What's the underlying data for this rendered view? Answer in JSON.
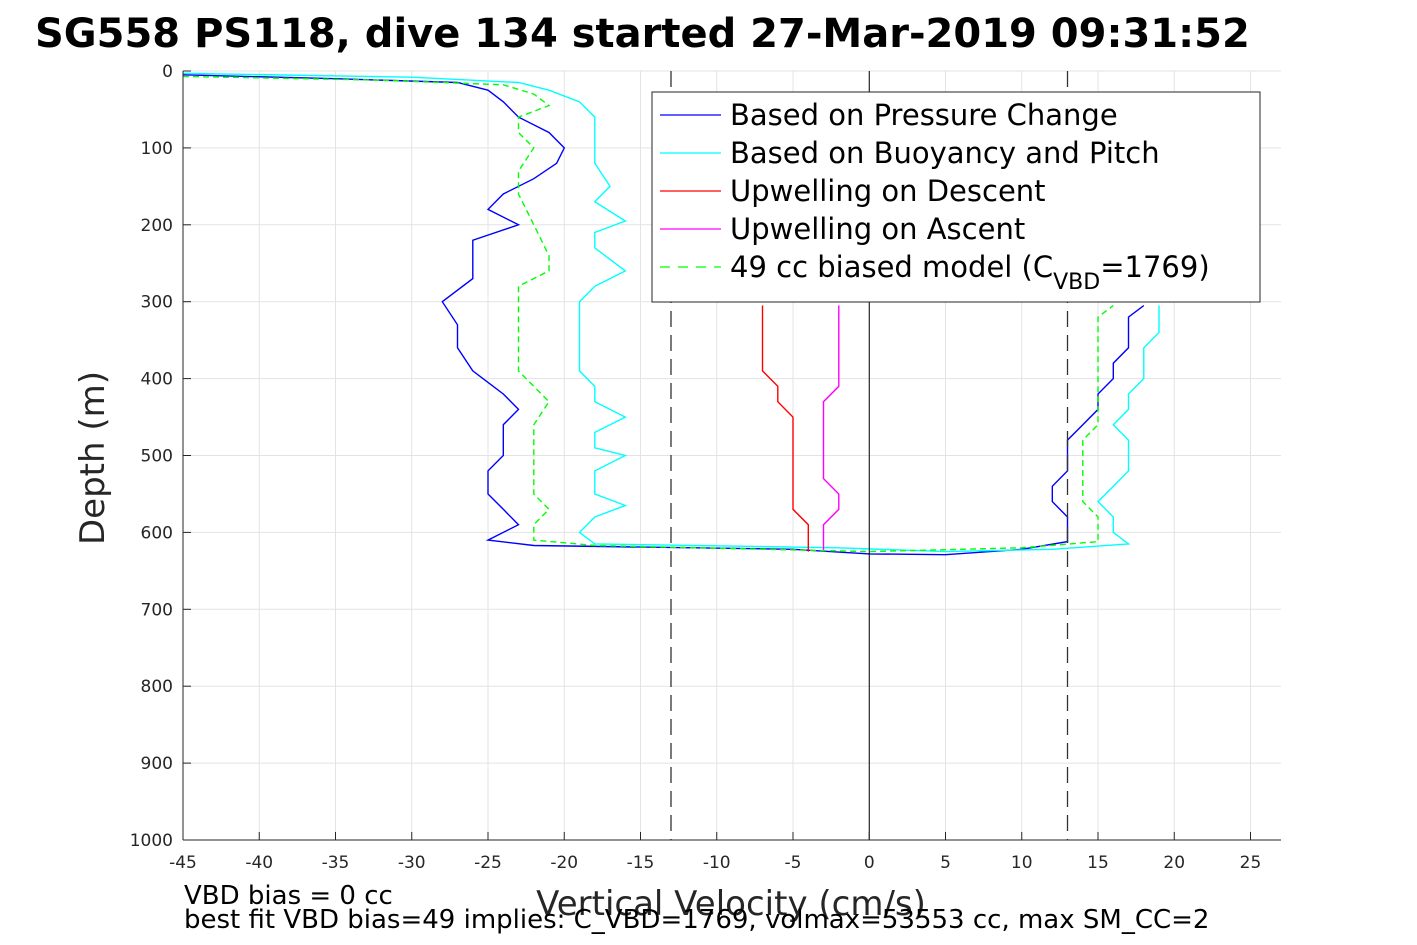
{
  "chart_data": {
    "type": "line",
    "title": "SG558 PS118, dive 134 started 27-Mar-2019 09:31:52",
    "xlabel": "Vertical Velocity (cm/s)",
    "ylabel": "Depth (m)",
    "xlim": [
      -45,
      27
    ],
    "ylim": [
      0,
      1000
    ],
    "y_reversed": true,
    "grid": true,
    "x_ticks": [
      -45,
      -40,
      -35,
      -30,
      -25,
      -20,
      -15,
      -10,
      -5,
      0,
      5,
      10,
      15,
      20,
      25
    ],
    "y_ticks": [
      0,
      100,
      200,
      300,
      400,
      500,
      600,
      700,
      800,
      900,
      1000
    ],
    "legend_position": "top-right",
    "reference_lines": {
      "zero_line_x": 0,
      "dashed_lines_x": [
        -13,
        13
      ]
    },
    "series": [
      {
        "name": "Based on Pressure Change",
        "color": "#0000ff",
        "style": "solid",
        "points": [
          [
            -45,
            5
          ],
          [
            -35,
            10
          ],
          [
            -27,
            15
          ],
          [
            -25,
            25
          ],
          [
            -24,
            40
          ],
          [
            -23,
            60
          ],
          [
            -21,
            80
          ],
          [
            -20,
            100
          ],
          [
            -20.5,
            120
          ],
          [
            -22,
            140
          ],
          [
            -24,
            160
          ],
          [
            -25,
            180
          ],
          [
            -23,
            200
          ],
          [
            -26,
            220
          ],
          [
            -26,
            250
          ],
          [
            -26,
            270
          ],
          [
            -28,
            300
          ],
          [
            -27,
            330
          ],
          [
            -27,
            360
          ],
          [
            -26,
            390
          ],
          [
            -24,
            420
          ],
          [
            -23,
            440
          ],
          [
            -24,
            460
          ],
          [
            -24,
            480
          ],
          [
            -24,
            500
          ],
          [
            -25,
            520
          ],
          [
            -25,
            550
          ],
          [
            -24,
            570
          ],
          [
            -23,
            590
          ],
          [
            -25,
            610
          ],
          [
            -22,
            617
          ],
          [
            -5,
            622
          ],
          [
            0,
            628
          ],
          [
            5,
            629
          ],
          [
            10,
            622
          ],
          [
            13,
            612
          ],
          [
            13,
            600
          ],
          [
            13,
            580
          ],
          [
            12,
            560
          ],
          [
            12,
            540
          ],
          [
            13,
            520
          ],
          [
            13,
            500
          ],
          [
            13,
            480
          ],
          [
            14,
            460
          ],
          [
            15,
            440
          ],
          [
            15,
            420
          ],
          [
            16,
            400
          ],
          [
            16,
            380
          ],
          [
            17,
            360
          ],
          [
            17,
            340
          ],
          [
            17,
            320
          ],
          [
            18,
            305
          ]
        ]
      },
      {
        "name": "Based on Buoyancy and Pitch",
        "color": "#00ffff",
        "style": "solid",
        "points": [
          [
            -45,
            3
          ],
          [
            -30,
            8
          ],
          [
            -23,
            15
          ],
          [
            -21,
            25
          ],
          [
            -19,
            40
          ],
          [
            -18,
            60
          ],
          [
            -18,
            80
          ],
          [
            -18,
            100
          ],
          [
            -18,
            120
          ],
          [
            -17,
            150
          ],
          [
            -18,
            170
          ],
          [
            -16,
            195
          ],
          [
            -18,
            210
          ],
          [
            -18,
            230
          ],
          [
            -16,
            260
          ],
          [
            -18,
            280
          ],
          [
            -19,
            300
          ],
          [
            -19,
            330
          ],
          [
            -19,
            360
          ],
          [
            -19,
            390
          ],
          [
            -18,
            410
          ],
          [
            -18,
            430
          ],
          [
            -16,
            450
          ],
          [
            -18,
            470
          ],
          [
            -18,
            490
          ],
          [
            -16,
            500
          ],
          [
            -18,
            520
          ],
          [
            -18,
            550
          ],
          [
            -16,
            565
          ],
          [
            -18,
            580
          ],
          [
            -19,
            600
          ],
          [
            -18,
            615
          ],
          [
            -2,
            620
          ],
          [
            5,
            625
          ],
          [
            12,
            622
          ],
          [
            17,
            615
          ],
          [
            16,
            600
          ],
          [
            16,
            580
          ],
          [
            15,
            560
          ],
          [
            16,
            540
          ],
          [
            17,
            520
          ],
          [
            17,
            500
          ],
          [
            17,
            480
          ],
          [
            16,
            460
          ],
          [
            17,
            440
          ],
          [
            17,
            420
          ],
          [
            18,
            400
          ],
          [
            18,
            380
          ],
          [
            18,
            360
          ],
          [
            19,
            340
          ],
          [
            19,
            320
          ],
          [
            19,
            305
          ]
        ]
      },
      {
        "name": "Upwelling on Descent",
        "color": "#ff0000",
        "style": "solid",
        "points": [
          [
            -7,
            305
          ],
          [
            -7,
            330
          ],
          [
            -7,
            360
          ],
          [
            -7,
            390
          ],
          [
            -6,
            410
          ],
          [
            -6,
            430
          ],
          [
            -5,
            450
          ],
          [
            -5,
            470
          ],
          [
            -5,
            490
          ],
          [
            -5,
            510
          ],
          [
            -5,
            530
          ],
          [
            -5,
            550
          ],
          [
            -5,
            570
          ],
          [
            -4,
            590
          ],
          [
            -4,
            610
          ],
          [
            -4,
            625
          ]
        ]
      },
      {
        "name": "Upwelling on Ascent",
        "color": "#ff00ff",
        "style": "solid",
        "points": [
          [
            -2,
            305
          ],
          [
            -2,
            330
          ],
          [
            -2,
            350
          ],
          [
            -2,
            370
          ],
          [
            -2,
            390
          ],
          [
            -2,
            410
          ],
          [
            -3,
            430
          ],
          [
            -3,
            450
          ],
          [
            -3,
            470
          ],
          [
            -3,
            490
          ],
          [
            -3,
            510
          ],
          [
            -3,
            530
          ],
          [
            -2,
            550
          ],
          [
            -2,
            570
          ],
          [
            -3,
            590
          ],
          [
            -3,
            610
          ],
          [
            -3,
            625
          ]
        ]
      },
      {
        "name": "49 cc biased model (C",
        "subscript": "VBD",
        "suffix": "=1769)",
        "color": "#00ff00",
        "style": "dashed",
        "points": [
          [
            -45,
            7
          ],
          [
            -32,
            12
          ],
          [
            -24,
            18
          ],
          [
            -22,
            30
          ],
          [
            -21,
            45
          ],
          [
            -23,
            60
          ],
          [
            -23,
            80
          ],
          [
            -22,
            100
          ],
          [
            -23,
            130
          ],
          [
            -23,
            160
          ],
          [
            -22,
            200
          ],
          [
            -21,
            240
          ],
          [
            -21,
            260
          ],
          [
            -23,
            280
          ],
          [
            -23,
            300
          ],
          [
            -23,
            330
          ],
          [
            -23,
            360
          ],
          [
            -23,
            390
          ],
          [
            -22,
            410
          ],
          [
            -21,
            430
          ],
          [
            -22,
            460
          ],
          [
            -22,
            490
          ],
          [
            -22,
            520
          ],
          [
            -22,
            550
          ],
          [
            -21,
            570
          ],
          [
            -22,
            590
          ],
          [
            -22,
            610
          ],
          [
            -18,
            617
          ],
          [
            0,
            625
          ],
          [
            10,
            620
          ],
          [
            15,
            612
          ],
          [
            15,
            600
          ],
          [
            15,
            580
          ],
          [
            14,
            560
          ],
          [
            14,
            540
          ],
          [
            14,
            520
          ],
          [
            14,
            500
          ],
          [
            14,
            480
          ],
          [
            15,
            460
          ],
          [
            15,
            440
          ],
          [
            15,
            420
          ],
          [
            15,
            400
          ],
          [
            15,
            380
          ],
          [
            15,
            360
          ],
          [
            15,
            340
          ],
          [
            15,
            320
          ],
          [
            16,
            305
          ]
        ]
      }
    ]
  },
  "footer": {
    "line1": "VBD bias = 0 cc",
    "line2": "best fit VBD bias=49 implies: C_VBD=1769, volmax=53553 cc, max SM_CC=2"
  }
}
